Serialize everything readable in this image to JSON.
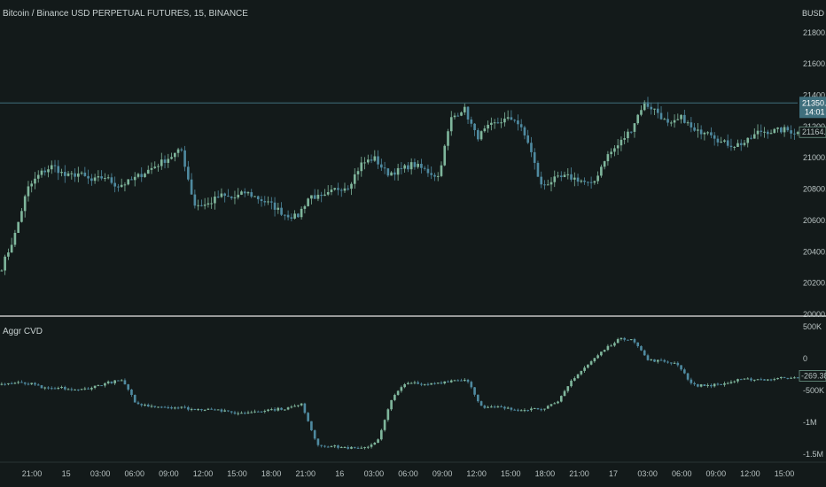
{
  "title": "Bitcoin / Binance USD PERPETUAL FUTURES, 15, BINANCE",
  "indicator_title": "Aggr CVD",
  "currency_label": "BUSD",
  "colors": {
    "background": "#131a1a",
    "up": "#7fb69c",
    "down": "#4f8aa0",
    "separator": "#e8e8e8",
    "price_tag": "#3f6f7d",
    "text": "#b8c2c2"
  },
  "price_tag": {
    "value": "21350.5",
    "countdown": "14:01"
  },
  "alt_tag": "21164.1",
  "cvd_tag": "-269.384K",
  "chart_data": [
    {
      "type": "candlestick",
      "title": "Bitcoin / Binance USD PERPETUAL FUTURES, 15, BINANCE",
      "ylabel": "BUSD",
      "ylim": [
        20000,
        21850
      ],
      "yticks": [
        "21800.0",
        "21600.0",
        "21400.0",
        "21200.0",
        "21000.0",
        "20800.0",
        "20600.0",
        "20400.0",
        "20200.0",
        "20000.0"
      ],
      "ytick_values": [
        21800,
        21600,
        21400,
        21200,
        21000,
        20800,
        20600,
        20400,
        20200,
        20000
      ],
      "xticks": [
        "21:00",
        "15",
        "03:00",
        "06:00",
        "09:00",
        "12:00",
        "15:00",
        "18:00",
        "21:00",
        "16",
        "03:00",
        "06:00",
        "09:00",
        "12:00",
        "15:00",
        "18:00",
        "21:00",
        "17",
        "03:00",
        "06:00",
        "09:00",
        "12:00",
        "15:00"
      ],
      "close_profile": [
        20300,
        20500,
        20800,
        20900,
        20950,
        20880,
        20900,
        20850,
        20880,
        20820,
        20850,
        20900,
        20950,
        21000,
        21050,
        20700,
        20700,
        20760,
        20740,
        20780,
        20740,
        20700,
        20640,
        20620,
        20760,
        20740,
        20800,
        20820,
        20960,
        21000,
        20900,
        20920,
        20960,
        20920,
        20880,
        21250,
        21320,
        21130,
        21200,
        21240,
        21250,
        21100,
        20820,
        20860,
        20880,
        20860,
        20820,
        21000,
        21080,
        21180,
        21350,
        21300,
        21200,
        21260,
        21160,
        21180,
        21100,
        21080,
        21100,
        21170,
        21170,
        21180,
        21160
      ],
      "current_price": 21350.5,
      "grid": false
    },
    {
      "type": "candlestick",
      "title": "Aggr CVD",
      "ylim": [
        -1600000,
        600000
      ],
      "yticks": [
        "500K",
        "0",
        "-500K",
        "-1M",
        "-1.5M"
      ],
      "ytick_values": [
        500000,
        0,
        -500000,
        -1000000,
        -1500000
      ],
      "close_profile": [
        -400000,
        -380000,
        -400000,
        -480000,
        -460000,
        -500000,
        -450000,
        -380000,
        -340000,
        -720000,
        -740000,
        -760000,
        -770000,
        -800000,
        -780000,
        -840000,
        -860000,
        -820000,
        -800000,
        -780000,
        -720000,
        -1350000,
        -1380000,
        -1400000,
        -1420000,
        -1300000,
        -620000,
        -360000,
        -420000,
        -380000,
        -340000,
        -330000,
        -780000,
        -760000,
        -800000,
        -790000,
        -780000,
        -700000,
        -320000,
        -100000,
        120000,
        300000,
        320000,
        -20000,
        -40000,
        -80000,
        -420000,
        -420000,
        -400000,
        -340000,
        -320000,
        -330000,
        -300000,
        -280000
      ],
      "current_value": -269384,
      "grid": false
    }
  ]
}
